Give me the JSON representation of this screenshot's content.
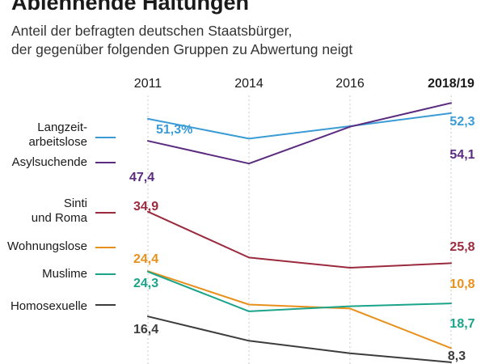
{
  "header": {
    "title": "Ablehnende Haltungen",
    "subtitle_lines": [
      "Anteil der befragten deutschen Staatsbürger,",
      "der gegenüber folgenden Gruppen zu Abwertung neigt"
    ]
  },
  "chart_data": {
    "type": "line",
    "title": "Ablehnende Haltungen",
    "subtitle": "Anteil der befragten deutschen Staatsbürger, der gegenüber folgenden Gruppen zu Abwertung neigt",
    "x": [
      "2011",
      "2014",
      "2016",
      "2018/19"
    ],
    "bold_x": "2018/19",
    "y_unit": "%",
    "ylim": [
      5,
      60
    ],
    "grid": "vertical dotted",
    "legend_placement": "left",
    "series": [
      {
        "name": "Langzeit- arbeitslose",
        "label_lines": [
          "Langzeit-",
          "arbeitslose"
        ],
        "color": "#3a9bd5",
        "values": [
          51.3,
          47.8,
          50.0,
          52.3
        ],
        "start_label": "51,3%",
        "end_label": "52,3"
      },
      {
        "name": "Asylsuchende",
        "label_lines": [
          "Asylsuchende"
        ],
        "color": "#5b2b80",
        "values": [
          47.4,
          43.4,
          49.9,
          54.1
        ],
        "start_label": "47,4",
        "end_label": "54,1"
      },
      {
        "name": "Sinti und Roma",
        "label_lines": [
          "Sinti",
          "und Roma"
        ],
        "color": "#9b2a3e",
        "values": [
          34.9,
          26.8,
          25.0,
          25.8
        ],
        "start_label": "34,9",
        "end_label": "25,8"
      },
      {
        "name": "Wohnungslose",
        "label_lines": [
          "Wohnungslose"
        ],
        "color": "#e8901c",
        "values": [
          24.4,
          18.5,
          17.8,
          10.8
        ],
        "start_label": "24,4",
        "end_label": "10,8"
      },
      {
        "name": "Muslime",
        "label_lines": [
          "Muslime"
        ],
        "color": "#1ba48a",
        "values": [
          24.3,
          17.3,
          18.2,
          18.7
        ],
        "start_label": "24,3",
        "end_label": "18,7"
      },
      {
        "name": "Homosexuelle",
        "label_lines": [
          "Homosexuelle"
        ],
        "color": "#3c3c3c",
        "values": [
          16.4,
          12.1,
          9.9,
          8.3
        ],
        "start_label": "16,4",
        "end_label": "8,3"
      }
    ]
  }
}
